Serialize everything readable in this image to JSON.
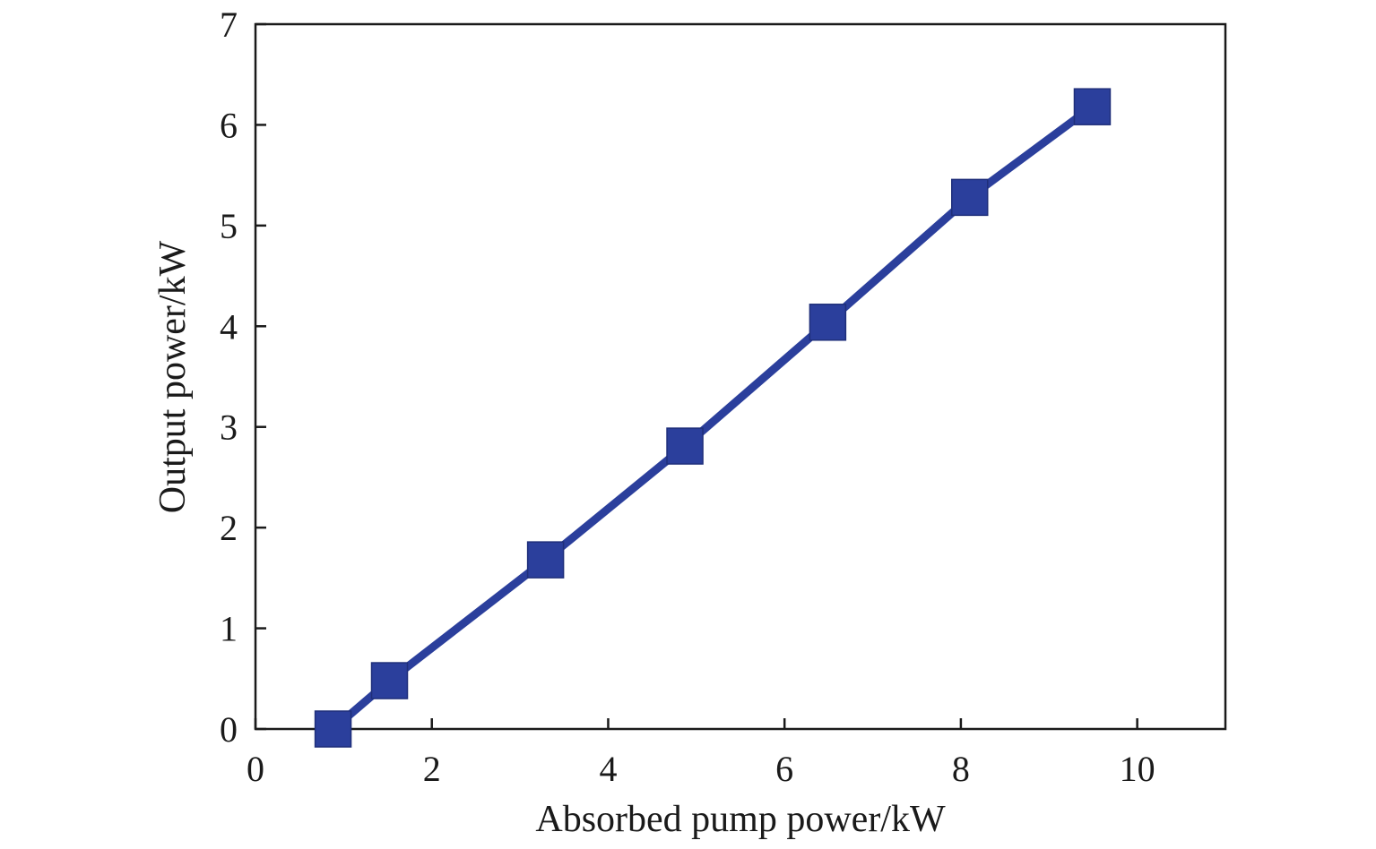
{
  "chart_data": {
    "type": "line",
    "title": "",
    "xlabel": "Absorbed pump power/kW",
    "ylabel": "Output power/kW",
    "xlim": [
      0,
      11
    ],
    "ylim": [
      0,
      7
    ],
    "x_ticks": [
      0,
      2,
      4,
      6,
      8,
      10
    ],
    "y_ticks": [
      0,
      1,
      2,
      3,
      4,
      5,
      6,
      7
    ],
    "grid": false,
    "legend": "none",
    "series": [
      {
        "color": "#2b3f9c",
        "marker": "square",
        "points": [
          {
            "x": 0.88,
            "y": 0.0
          },
          {
            "x": 1.52,
            "y": 0.48
          },
          {
            "x": 3.29,
            "y": 1.68
          },
          {
            "x": 4.87,
            "y": 2.81
          },
          {
            "x": 6.49,
            "y": 4.04
          },
          {
            "x": 8.1,
            "y": 5.28
          },
          {
            "x": 9.49,
            "y": 6.18
          }
        ]
      }
    ]
  }
}
